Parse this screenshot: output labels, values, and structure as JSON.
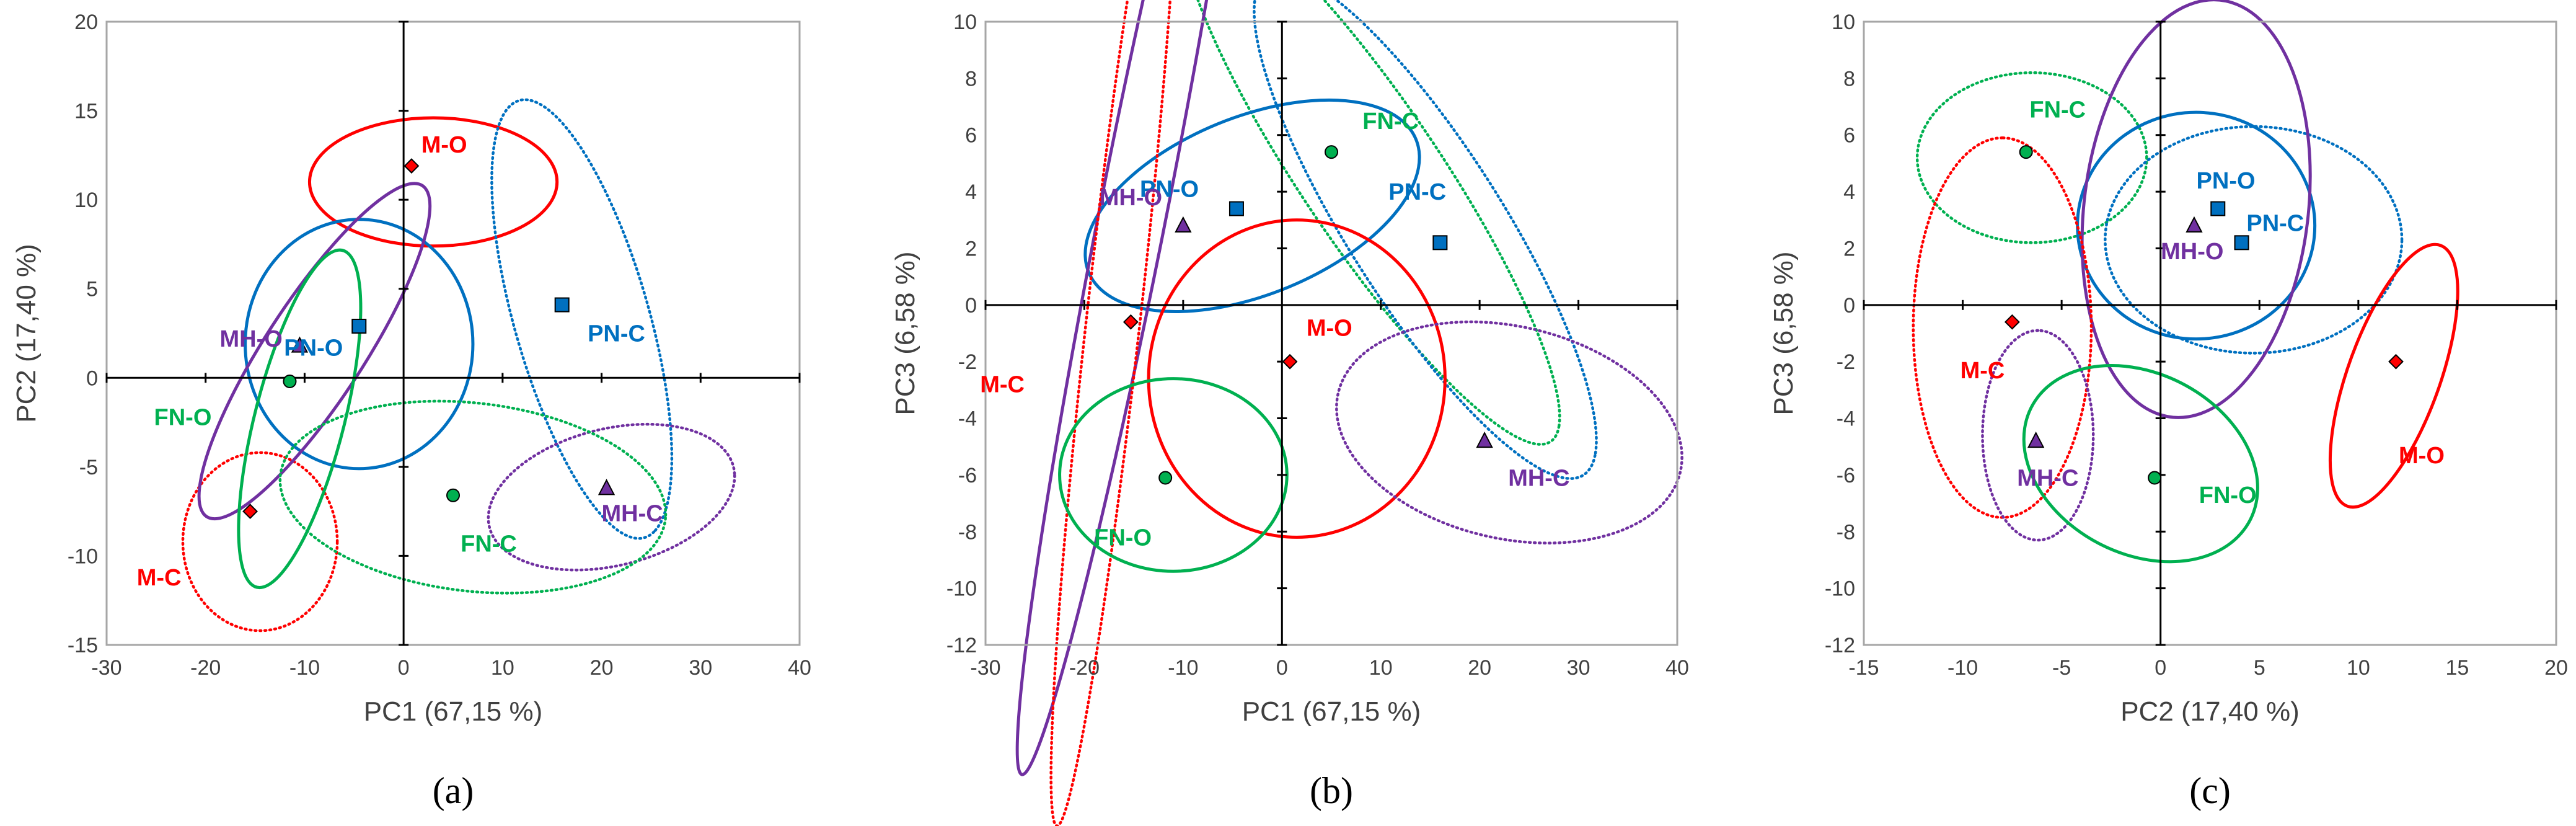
{
  "colors": {
    "M": "#ff0000",
    "FN": "#00b050",
    "PN": "#0070c0",
    "MH": "#7030a0",
    "axis": "#000000",
    "frame": "#a6a6a6",
    "tick_text": "#404040"
  },
  "chart_data": [
    {
      "type": "scatter",
      "panel_label": "(a)",
      "xlabel": "PC1 (67,15 %)",
      "ylabel": "PC2 (17,40 %)",
      "xlim": [
        -30,
        40
      ],
      "ylim": [
        -15,
        20
      ],
      "xticks": [
        -30,
        -20,
        -10,
        0,
        10,
        20,
        30,
        40
      ],
      "yticks": [
        -15,
        -10,
        -5,
        0,
        5,
        10,
        15,
        20
      ],
      "grid": false,
      "points": [
        {
          "label": "M-O",
          "group": "M",
          "marker": "diamond",
          "x": 0.8,
          "y": 11.9
        },
        {
          "label": "PN-C",
          "group": "PN",
          "marker": "square",
          "x": 16.0,
          "y": 4.1
        },
        {
          "label": "PN-O",
          "group": "PN",
          "marker": "square",
          "x": -4.5,
          "y": 2.9
        },
        {
          "label": "MH-O",
          "group": "MH",
          "marker": "triangle",
          "x": -10.5,
          "y": 1.8
        },
        {
          "label": "FN-O",
          "group": "FN",
          "marker": "circle",
          "x": -11.5,
          "y": -0.2
        },
        {
          "label": "FN-C",
          "group": "FN",
          "marker": "circle",
          "x": 5.0,
          "y": -6.6
        },
        {
          "label": "MH-C",
          "group": "MH",
          "marker": "triangle",
          "x": 20.5,
          "y": -6.2
        },
        {
          "label": "M-C",
          "group": "M",
          "marker": "diamond",
          "x": -15.5,
          "y": -7.5
        }
      ],
      "ellipses": [
        {
          "group": "M",
          "style": "solid",
          "cx": 3.0,
          "cy": 11.0,
          "rx": 12.5,
          "ry": 3.6,
          "angle": 0
        },
        {
          "group": "M",
          "style": "dotted",
          "cx": -14.5,
          "cy": -9.2,
          "rx": 7.8,
          "ry": 5.0,
          "angle": 0
        },
        {
          "group": "PN",
          "style": "solid",
          "cx": -4.5,
          "cy": 1.9,
          "rx": 11.5,
          "ry": 7.0,
          "angle": 0
        },
        {
          "group": "PN",
          "style": "dotted",
          "cx": 18.0,
          "cy": 3.3,
          "rx": 14.0,
          "ry": 6.2,
          "angle": -58
        },
        {
          "group": "MH",
          "style": "solid",
          "cx": -9.0,
          "cy": 1.5,
          "rx": 14.5,
          "ry": 3.8,
          "angle": 38
        },
        {
          "group": "MH",
          "style": "dotted",
          "cx": 21.0,
          "cy": -6.7,
          "rx": 12.5,
          "ry": 3.9,
          "angle": 6
        },
        {
          "group": "FN",
          "style": "solid",
          "cx": -10.5,
          "cy": -2.3,
          "rx": 10.5,
          "ry": 4.2,
          "angle": 62
        },
        {
          "group": "FN",
          "style": "dotted",
          "cx": 7.0,
          "cy": -6.7,
          "rx": 19.5,
          "ry": 5.3,
          "angle": -3
        }
      ],
      "label_offsets": [
        {
          "label": "M-O",
          "dx": 3.3,
          "dy": 1.2
        },
        {
          "label": "PN-C",
          "dx": 5.5,
          "dy": -1.6
        },
        {
          "label": "PN-O",
          "dx": -4.6,
          "dy": -1.2
        },
        {
          "label": "MH-O",
          "dx": -4.9,
          "dy": 0.4
        },
        {
          "label": "FN-O",
          "dx": -10.8,
          "dy": -2.0
        },
        {
          "label": "FN-C",
          "dx": 3.6,
          "dy": -2.7
        },
        {
          "label": "MH-C",
          "dx": 2.6,
          "dy": -1.4
        },
        {
          "label": "M-C",
          "dx": -9.2,
          "dy": -3.7
        }
      ]
    },
    {
      "type": "scatter",
      "panel_label": "(b)",
      "xlabel": "PC1 (67,15 %)",
      "ylabel": "PC3 (6,58 %)",
      "xlim": [
        -30,
        40
      ],
      "ylim": [
        -12,
        10
      ],
      "xticks": [
        -30,
        -20,
        -10,
        0,
        10,
        20,
        30,
        40
      ],
      "yticks": [
        -12,
        -10,
        -8,
        -6,
        -4,
        -2,
        0,
        2,
        4,
        6,
        8,
        10
      ],
      "grid": false,
      "points": [
        {
          "label": "FN-C",
          "group": "FN",
          "marker": "circle",
          "x": 5.0,
          "y": 5.4
        },
        {
          "label": "PN-O",
          "group": "PN",
          "marker": "square",
          "x": -4.6,
          "y": 3.4
        },
        {
          "label": "PN-C",
          "group": "PN",
          "marker": "square",
          "x": 16.0,
          "y": 2.2
        },
        {
          "label": "MH-O",
          "group": "MH",
          "marker": "triangle",
          "x": -10.0,
          "y": 2.8
        },
        {
          "label": "M-C",
          "group": "M",
          "marker": "diamond",
          "x": -15.3,
          "y": -0.6
        },
        {
          "label": "M-O",
          "group": "M",
          "marker": "diamond",
          "x": 0.8,
          "y": -2.0
        },
        {
          "label": "MH-C",
          "group": "MH",
          "marker": "triangle",
          "x": 20.5,
          "y": -4.8
        },
        {
          "label": "FN-O",
          "group": "FN",
          "marker": "circle",
          "x": -11.8,
          "y": -6.1
        }
      ],
      "ellipses": [
        {
          "group": "FN",
          "style": "dotted",
          "cx": 9.0,
          "cy": 4.6,
          "rx": 21.0,
          "ry": 3.8,
          "angle": -25
        },
        {
          "group": "PN",
          "style": "solid",
          "cx": -3.0,
          "cy": 3.5,
          "rx": 17.0,
          "ry": 3.3,
          "angle": 6
        },
        {
          "group": "PN",
          "style": "dotted",
          "cx": 14.5,
          "cy": 2.8,
          "rx": 19.0,
          "ry": 4.3,
          "angle": -25
        },
        {
          "group": "MH",
          "style": "solid",
          "cx": -15.0,
          "cy": 3.4,
          "rx": 23.0,
          "ry": 3.0,
          "angle": 60
        },
        {
          "group": "M",
          "style": "dotted",
          "cx": -17.0,
          "cy": -0.3,
          "rx": 19.0,
          "ry": 2.6,
          "angle": 72
        },
        {
          "group": "M",
          "style": "solid",
          "cx": 1.5,
          "cy": -2.6,
          "rx": 15.0,
          "ry": 5.6,
          "angle": 0
        },
        {
          "group": "MH",
          "style": "dotted",
          "cx": 23.0,
          "cy": -4.5,
          "rx": 17.5,
          "ry": 3.8,
          "angle": -3
        },
        {
          "group": "FN",
          "style": "solid",
          "cx": -11.0,
          "cy": -6.0,
          "rx": 11.5,
          "ry": 3.4,
          "angle": 0
        }
      ],
      "label_offsets": [
        {
          "label": "FN-C",
          "dx": 6.0,
          "dy": 1.1
        },
        {
          "label": "PN-O",
          "dx": -6.8,
          "dy": 0.7
        },
        {
          "label": "PN-C",
          "dx": -2.3,
          "dy": 1.8
        },
        {
          "label": "MH-O",
          "dx": -5.3,
          "dy": 1.0
        },
        {
          "label": "M-C",
          "dx": -13.0,
          "dy": -2.2
        },
        {
          "label": "M-O",
          "dx": 4.0,
          "dy": 1.2
        },
        {
          "label": "MH-C",
          "dx": 5.5,
          "dy": -1.3
        },
        {
          "label": "FN-O",
          "dx": -4.3,
          "dy": -2.1
        }
      ]
    },
    {
      "type": "scatter",
      "panel_label": "(c)",
      "xlabel": "PC2 (17,40 %)",
      "ylabel": "PC3 (6,58 %)",
      "xlim": [
        -15,
        20
      ],
      "ylim": [
        -12,
        10
      ],
      "xticks": [
        -15,
        -10,
        -5,
        0,
        5,
        10,
        15,
        20
      ],
      "yticks": [
        -12,
        -10,
        -8,
        -6,
        -4,
        -2,
        0,
        2,
        4,
        6,
        8,
        10
      ],
      "grid": false,
      "points": [
        {
          "label": "FN-C",
          "group": "FN",
          "marker": "circle",
          "x": -6.8,
          "y": 5.4
        },
        {
          "label": "PN-O",
          "group": "PN",
          "marker": "square",
          "x": 2.9,
          "y": 3.4
        },
        {
          "label": "PN-C",
          "group": "PN",
          "marker": "square",
          "x": 4.1,
          "y": 2.2
        },
        {
          "label": "MH-O",
          "group": "MH",
          "marker": "triangle",
          "x": 1.7,
          "y": 2.8
        },
        {
          "label": "M-C",
          "group": "M",
          "marker": "diamond",
          "x": -7.5,
          "y": -0.6
        },
        {
          "label": "M-O",
          "group": "M",
          "marker": "diamond",
          "x": 11.9,
          "y": -2.0
        },
        {
          "label": "MH-C",
          "group": "MH",
          "marker": "triangle",
          "x": -6.3,
          "y": -4.8
        },
        {
          "label": "FN-O",
          "group": "FN",
          "marker": "circle",
          "x": -0.3,
          "y": -6.1
        }
      ],
      "ellipses": [
        {
          "group": "FN",
          "style": "dotted",
          "cx": -6.5,
          "cy": 5.2,
          "rx": 5.8,
          "ry": 3.0,
          "angle": 0
        },
        {
          "group": "PN",
          "style": "solid",
          "cx": 1.8,
          "cy": 2.8,
          "rx": 6.0,
          "ry": 4.0,
          "angle": 0
        },
        {
          "group": "PN",
          "style": "dotted",
          "cx": 4.7,
          "cy": 2.3,
          "rx": 7.5,
          "ry": 4.0,
          "angle": 0
        },
        {
          "group": "MH",
          "style": "solid",
          "cx": 1.8,
          "cy": 3.4,
          "rx": 7.5,
          "ry": 5.6,
          "angle": 74
        },
        {
          "group": "M",
          "style": "dotted",
          "cx": -8.0,
          "cy": -0.8,
          "rx": 6.7,
          "ry": 4.5,
          "angle": 90
        },
        {
          "group": "M",
          "style": "solid",
          "cx": 11.8,
          "cy": -2.5,
          "rx": 5.2,
          "ry": 2.2,
          "angle": 60
        },
        {
          "group": "MH",
          "style": "dotted",
          "cx": -6.2,
          "cy": -4.6,
          "rx": 3.7,
          "ry": 2.8,
          "angle": 90
        },
        {
          "group": "FN",
          "style": "solid",
          "cx": -1.0,
          "cy": -5.6,
          "rx": 6.0,
          "ry": 3.3,
          "angle": -12
        }
      ],
      "label_offsets": [
        {
          "label": "FN-C",
          "dx": 1.6,
          "dy": 1.5
        },
        {
          "label": "PN-O",
          "dx": 0.4,
          "dy": 1.0
        },
        {
          "label": "PN-C",
          "dx": 1.7,
          "dy": 0.7
        },
        {
          "label": "MH-O",
          "dx": -0.1,
          "dy": -0.9
        },
        {
          "label": "M-C",
          "dx": -1.5,
          "dy": -1.7
        },
        {
          "label": "M-O",
          "dx": 1.3,
          "dy": -3.3
        },
        {
          "label": "MH-C",
          "dx": 0.6,
          "dy": -1.3
        },
        {
          "label": "FN-O",
          "dx": 3.7,
          "dy": -0.6
        }
      ]
    }
  ]
}
